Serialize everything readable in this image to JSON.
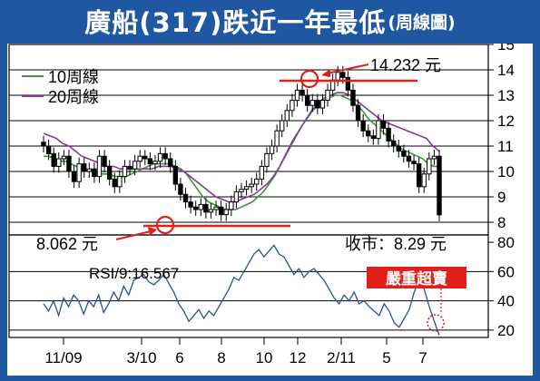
{
  "title": {
    "main": "廣船(317)跌近一年最低",
    "sub": "(周線圖)"
  },
  "legend": [
    {
      "label": "10周線",
      "color": "#3a9a3a"
    },
    {
      "label": "20周線",
      "color": "#8a3a9a"
    }
  ],
  "annotations": {
    "high": "14.232 元",
    "low": "8.062 元",
    "close": "收市：8.29 元",
    "rsi_label": "RSI/9:16.567",
    "oversold": "嚴重超賣"
  },
  "colors": {
    "background": "#1f57a3",
    "accent": "#e0201b",
    "candle": "#000000",
    "ma10": "#3a9a3a",
    "ma20": "#8a3a9a",
    "rsi": "#2a4fa0"
  },
  "chart_data": [
    {
      "type": "candlestick",
      "title": "廣船(317)跌近一年最低",
      "x_tick_labels": [
        "11/09",
        "3/10",
        "6",
        "8",
        "10",
        "12",
        "2/11",
        "5",
        "7"
      ],
      "y_ticks": [
        8,
        9,
        10,
        11,
        12,
        13,
        14,
        15
      ],
      "ylim": [
        7.5,
        15
      ],
      "series": [
        {
          "name": "price",
          "values": [
            11.0,
            10.7,
            10.2,
            10.5,
            10.6,
            10.0,
            9.6,
            10.3,
            10.0,
            10.1,
            9.8,
            10.6,
            10.2,
            9.7,
            9.4,
            9.8,
            10.2,
            10.1,
            10.4,
            10.6,
            10.5,
            10.3,
            10.4,
            10.7,
            10.5,
            10.2,
            9.5,
            9.1,
            8.8,
            8.6,
            8.5,
            8.7,
            8.4,
            8.5,
            8.6,
            8.3,
            8.5,
            8.8,
            9.2,
            9.3,
            9.4,
            9.5,
            9.7,
            10.2,
            10.7,
            11.0,
            11.6,
            12.0,
            12.4,
            12.8,
            13.2,
            13.0,
            12.6,
            12.8,
            12.5,
            12.8,
            13.2,
            13.6,
            13.9,
            13.7,
            13.2,
            12.6,
            12.0,
            11.6,
            11.4,
            11.3,
            12.0,
            11.7,
            11.2,
            11.0,
            10.8,
            10.6,
            10.4,
            10.3,
            9.4,
            9.9,
            10.5,
            10.6,
            8.29
          ]
        },
        {
          "name": "10周線",
          "values": [
            10.6,
            10.6,
            10.5,
            10.4,
            10.4,
            10.3,
            10.2,
            10.1,
            10.0,
            10.0,
            9.9,
            9.9,
            9.9,
            9.8,
            9.8,
            9.8,
            9.9,
            10.0,
            10.1,
            10.2,
            10.3,
            10.3,
            10.3,
            10.3,
            10.2,
            10.1,
            9.9,
            9.6,
            9.3,
            9.0,
            8.8,
            8.7,
            8.6,
            8.5,
            8.5,
            8.5,
            8.6,
            8.7,
            8.8,
            9.0,
            9.2,
            9.5,
            9.8,
            10.2,
            10.6,
            11.0,
            11.4,
            11.8,
            12.1,
            12.4,
            12.6,
            12.8,
            12.9,
            13.0,
            13.0,
            12.9,
            12.8,
            12.6,
            12.4,
            12.1,
            11.9,
            11.7,
            11.5,
            11.3,
            11.1,
            10.9,
            10.8,
            10.7,
            10.6,
            10.5,
            10.3,
            10.2,
            10.2
          ]
        },
        {
          "name": "20周線",
          "values": [
            11.5,
            11.4,
            11.3,
            11.1,
            11.0,
            10.8,
            10.6,
            10.5,
            10.4,
            10.3,
            10.2,
            10.2,
            10.1,
            10.1,
            10.1,
            10.1,
            10.1,
            10.1,
            10.2,
            10.2,
            10.2,
            10.1,
            10.0,
            9.8,
            9.6,
            9.4,
            9.2,
            9.0,
            8.9,
            8.8,
            8.8,
            8.9,
            9.0,
            9.1,
            9.3,
            9.5,
            9.8,
            10.2,
            10.7,
            11.2,
            11.6,
            12.0,
            12.4,
            12.7,
            12.9,
            13.0,
            13.1,
            13.1,
            13.0,
            12.8,
            12.6,
            12.4,
            12.2,
            12.0,
            11.9,
            11.8,
            11.7,
            11.6,
            11.5,
            11.4,
            11.3,
            11.0,
            10.8
          ]
        }
      ]
    },
    {
      "type": "line",
      "title": "RSI/9",
      "y_ticks": [
        20,
        40,
        60,
        80
      ],
      "ylim": [
        15,
        85
      ],
      "series": [
        {
          "name": "RSI/9",
          "values": [
            38,
            33,
            40,
            30,
            42,
            36,
            44,
            40,
            31,
            40,
            36,
            44,
            32,
            38,
            46,
            40,
            50,
            44,
            54,
            56,
            58,
            53,
            51,
            54,
            58,
            52,
            46,
            38,
            33,
            26,
            30,
            34,
            28,
            33,
            30,
            36,
            42,
            48,
            56,
            54,
            60,
            66,
            72,
            75,
            70,
            74,
            78,
            72,
            70,
            64,
            58,
            62,
            56,
            60,
            62,
            58,
            54,
            48,
            42,
            38,
            44,
            40,
            46,
            38,
            40,
            36,
            33,
            30,
            38,
            33,
            25,
            22,
            28,
            34,
            46,
            54,
            48,
            36,
            26,
            16.567
          ]
        }
      ]
    }
  ]
}
